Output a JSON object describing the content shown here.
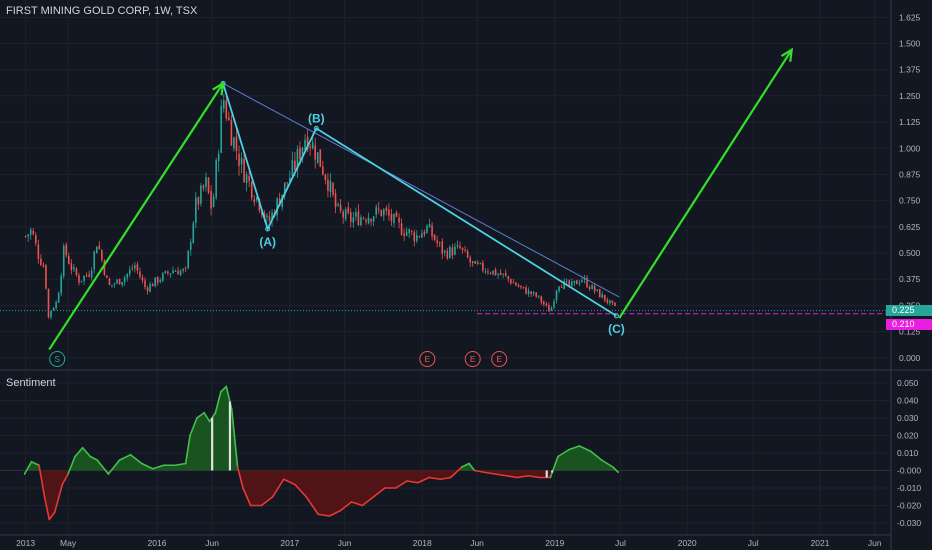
{
  "header": {
    "title": "FIRST MINING GOLD CORP, 1W, TSX"
  },
  "indicator": {
    "name": "Sentiment"
  },
  "colors": {
    "background": "#131722",
    "grid": "#1e222d",
    "axis_text": "#b2b5be",
    "up": "#26a69a",
    "down": "#ef5350",
    "arrow": "#32e02a",
    "wave": "#4dd0e1",
    "trendline": "#5b7fd6",
    "badge_current": "#26a69a",
    "badge_low": "#e91ee0",
    "sent_pos": "#1b5e20",
    "sent_neg": "#5d1414"
  },
  "chart_data": [
    {
      "type": "candlestick",
      "title": "FIRST MINING GOLD CORP, 1W, TSX",
      "y_ticks": [
        0.0,
        0.125,
        0.25,
        0.375,
        0.5,
        0.625,
        0.75,
        0.875,
        1.0,
        1.125,
        1.25,
        1.375,
        1.5,
        1.625
      ],
      "y_tick_labels": [
        "0.000",
        "0.125",
        "0.250",
        "0.375",
        "0.500",
        "0.625",
        "0.750",
        "0.875",
        "1.000",
        "1.125",
        "1.250",
        "1.375",
        "1.500",
        "1.625"
      ],
      "ylim": [
        -0.02,
        1.66
      ],
      "x_ticks": [
        "2013",
        "May",
        "2016",
        "Jun",
        "2017",
        "Jun",
        "2018",
        "Jun",
        "2019",
        "Jul",
        "2020",
        "Jul",
        "2021",
        "Jun"
      ],
      "x_tick_dates": [
        "2015-01-04",
        "2015-05-01",
        "2016-01-01",
        "2016-06-01",
        "2017-01-01",
        "2017-06-01",
        "2018-01-01",
        "2018-06-01",
        "2019-01-01",
        "2019-07-01",
        "2020-01-01",
        "2020-07-01",
        "2021-01-01",
        "2021-06-01"
      ],
      "close_path": [
        [
          "2015-01-04",
          0.58
        ],
        [
          "2015-01-20",
          0.61
        ],
        [
          "2015-02-10",
          0.48
        ],
        [
          "2015-02-25",
          0.43
        ],
        [
          "2015-03-10",
          0.15
        ],
        [
          "2015-03-12",
          0.22
        ],
        [
          "2015-04-01",
          0.27
        ],
        [
          "2015-04-20",
          0.52
        ],
        [
          "2015-05-10",
          0.43
        ],
        [
          "2015-06-01",
          0.37
        ],
        [
          "2015-07-01",
          0.41
        ],
        [
          "2015-07-20",
          0.56
        ],
        [
          "2015-08-20",
          0.34
        ],
        [
          "2015-10-01",
          0.38
        ],
        [
          "2015-11-01",
          0.44
        ],
        [
          "2015-12-01",
          0.33
        ],
        [
          "2016-01-01",
          0.37
        ],
        [
          "2016-02-15",
          0.42
        ],
        [
          "2016-03-20",
          0.41
        ],
        [
          "2016-04-15",
          0.72
        ],
        [
          "2016-05-15",
          0.83
        ],
        [
          "2016-06-01",
          0.7
        ],
        [
          "2016-07-01",
          1.25
        ],
        [
          "2016-07-20",
          1.1
        ],
        [
          "2016-08-20",
          0.92
        ],
        [
          "2016-09-15",
          0.82
        ],
        [
          "2016-10-15",
          0.72
        ],
        [
          "2016-11-01",
          0.64
        ],
        [
          "2016-12-01",
          0.75
        ],
        [
          "2017-01-15",
          0.92
        ],
        [
          "2017-02-15",
          1.07
        ],
        [
          "2017-03-15",
          0.98
        ],
        [
          "2017-04-15",
          0.85
        ],
        [
          "2017-05-10",
          0.7
        ],
        [
          "2017-06-15",
          0.66
        ],
        [
          "2017-08-01",
          0.68
        ],
        [
          "2017-09-15",
          0.7
        ],
        [
          "2017-11-01",
          0.62
        ],
        [
          "2017-12-15",
          0.58
        ],
        [
          "2018-01-15",
          0.62
        ],
        [
          "2018-03-01",
          0.5
        ],
        [
          "2018-04-15",
          0.52
        ],
        [
          "2018-05-20",
          0.44
        ],
        [
          "2018-07-01",
          0.42
        ],
        [
          "2018-08-15",
          0.39
        ],
        [
          "2018-10-01",
          0.33
        ],
        [
          "2018-11-15",
          0.29
        ],
        [
          "2018-12-20",
          0.22
        ],
        [
          "2019-01-10",
          0.36
        ],
        [
          "2019-02-15",
          0.34
        ],
        [
          "2019-03-15",
          0.38
        ],
        [
          "2019-04-15",
          0.33
        ],
        [
          "2019-05-20",
          0.28
        ],
        [
          "2019-06-20",
          0.23
        ]
      ],
      "annotations": {
        "wave_labels": [
          {
            "label": "(A)",
            "date": "2016-11-01",
            "value": 0.615
          },
          {
            "label": "(B)",
            "date": "2017-03-15",
            "value": 1.095
          },
          {
            "label": "(C)",
            "date": "2019-06-20",
            "value": 0.2
          }
        ],
        "wave_path": [
          [
            "2016-07-01",
            1.31
          ],
          [
            "2016-11-01",
            0.615
          ],
          [
            "2017-03-15",
            1.095
          ],
          [
            "2019-06-20",
            0.2
          ]
        ],
        "trendline": [
          [
            "2016-07-01",
            1.31
          ],
          [
            "2019-06-28",
            0.29
          ]
        ],
        "arrows": [
          {
            "from": [
              "2015-03-10",
              0.04
            ],
            "to": [
              "2016-07-01",
              1.31
            ]
          },
          {
            "from": [
              "2019-06-28",
              0.19
            ],
            "to": [
              "2020-10-15",
              1.47
            ]
          }
        ],
        "horizontal_lines": [
          {
            "value": 0.225,
            "style": "dotted"
          },
          {
            "value": 0.21,
            "style": "dashed",
            "from": "2018-06-01"
          }
        ],
        "event_markers": [
          {
            "label": "S",
            "date": "2015-04-01",
            "kind": "split"
          },
          {
            "label": "E",
            "date": "2018-01-15",
            "kind": "earnings"
          },
          {
            "label": "E",
            "date": "2018-05-20",
            "kind": "earnings"
          },
          {
            "label": "E",
            "date": "2018-08-01",
            "kind": "earnings"
          }
        ]
      },
      "price_badges": [
        {
          "label": "0.225",
          "value": 0.225
        },
        {
          "label": "0.210",
          "value": 0.21
        }
      ]
    },
    {
      "type": "area",
      "title": "Sentiment",
      "y_ticks": [
        0.05,
        0.04,
        0.03,
        0.02,
        0.01,
        0.0,
        -0.01,
        -0.02,
        -0.03
      ],
      "y_tick_labels": [
        "0.050",
        "0.040",
        "0.030",
        "0.020",
        "0.010",
        "-0.000",
        "-0.010",
        "-0.020",
        "-0.030"
      ],
      "ylim": [
        -0.034,
        0.054
      ],
      "x": [
        "2015-01-01",
        "2015-01-20",
        "2015-02-10",
        "2015-02-25",
        "2015-03-10",
        "2015-03-25",
        "2015-04-15",
        "2015-05-01",
        "2015-05-20",
        "2015-06-10",
        "2015-07-01",
        "2015-07-20",
        "2015-08-20",
        "2015-09-20",
        "2015-10-20",
        "2015-11-20",
        "2015-12-20",
        "2016-01-20",
        "2016-02-20",
        "2016-03-20",
        "2016-04-01",
        "2016-04-20",
        "2016-05-10",
        "2016-05-25",
        "2016-06-10",
        "2016-06-25",
        "2016-07-10",
        "2016-07-25",
        "2016-08-10",
        "2016-08-25",
        "2016-09-15",
        "2016-10-15",
        "2016-11-15",
        "2016-12-15",
        "2017-01-15",
        "2017-02-15",
        "2017-03-20",
        "2017-04-20",
        "2017-05-20",
        "2017-06-20",
        "2017-07-20",
        "2017-08-20",
        "2017-09-20",
        "2017-10-20",
        "2017-11-20",
        "2017-12-20",
        "2018-01-20",
        "2018-02-20",
        "2018-03-20",
        "2018-04-20",
        "2018-05-10",
        "2018-05-25",
        "2018-06-20",
        "2018-07-20",
        "2018-08-20",
        "2018-09-20",
        "2018-10-20",
        "2018-11-20",
        "2018-12-20",
        "2019-01-10",
        "2019-02-10",
        "2019-03-10",
        "2019-04-10",
        "2019-05-10",
        "2019-06-10",
        "2019-06-25"
      ],
      "values": [
        -0.002,
        0.005,
        0.003,
        -0.015,
        -0.028,
        -0.024,
        -0.008,
        -0.002,
        0.008,
        0.013,
        0.008,
        0.006,
        -0.002,
        0.006,
        0.009,
        0.004,
        0.001,
        0.003,
        0.003,
        0.004,
        0.02,
        0.03,
        0.033,
        0.028,
        0.033,
        0.045,
        0.048,
        0.035,
        0.002,
        -0.01,
        -0.02,
        -0.02,
        -0.015,
        -0.005,
        -0.008,
        -0.015,
        -0.025,
        -0.026,
        -0.023,
        -0.018,
        -0.02,
        -0.015,
        -0.01,
        -0.01,
        -0.006,
        -0.007,
        -0.004,
        -0.005,
        -0.004,
        0.002,
        0.004,
        0.0,
        -0.001,
        -0.002,
        -0.003,
        -0.004,
        -0.003,
        -0.004,
        -0.004,
        0.008,
        0.012,
        0.014,
        0.011,
        0.006,
        0.002,
        -0.001
      ],
      "markers_at": [
        "2016-06-01",
        "2016-07-20",
        "2018-05-25",
        "2018-12-10",
        "2018-12-25"
      ]
    }
  ]
}
